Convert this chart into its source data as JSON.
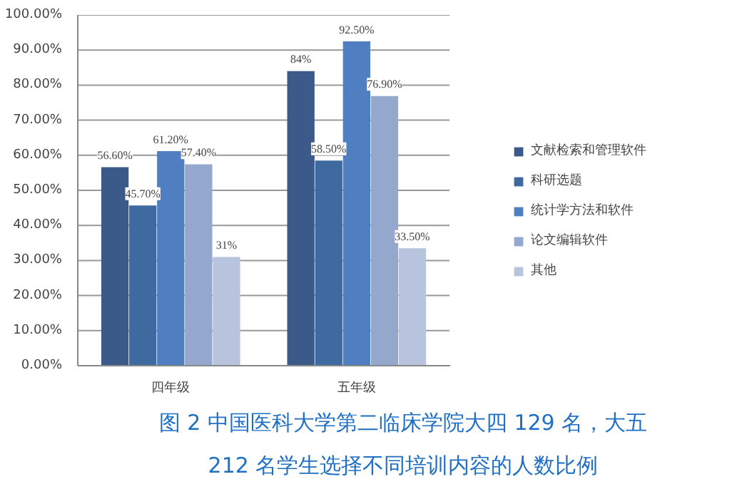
{
  "chart_data": {
    "type": "bar",
    "title": "图 2 中国医科大学第二临床学院大四 129 名，大五 212 名学生选择不同培训内容的人数比例",
    "categories": [
      "四年级",
      "五年级"
    ],
    "series": [
      {
        "name": "文献检索和管理软件",
        "color": "#3b5a8a",
        "values": [
          56.6,
          84
        ],
        "value_labels": [
          "56.60%",
          "84%"
        ]
      },
      {
        "name": "科研选题",
        "color": "#3f6aa0",
        "values": [
          45.7,
          58.5
        ],
        "value_labels": [
          "45.70%",
          "58.50%"
        ]
      },
      {
        "name": "统计学方法和软件",
        "color": "#4f7fc0",
        "values": [
          61.2,
          92.5
        ],
        "value_labels": [
          "61.20%",
          "92.50%"
        ]
      },
      {
        "name": "论文编辑软件",
        "color": "#93a8cc",
        "values": [
          57.4,
          76.9
        ],
        "value_labels": [
          "57.40%",
          "76.90%"
        ]
      },
      {
        "name": "其他",
        "color": "#b8c3de",
        "values": [
          31,
          33.5
        ],
        "value_labels": [
          "31%",
          "33.50%"
        ]
      }
    ],
    "ylim": [
      0,
      100
    ],
    "yticks": [
      {
        "value": 0,
        "label": "0.00%"
      },
      {
        "value": 10,
        "label": "10.00%"
      },
      {
        "value": 20,
        "label": "20.00%"
      },
      {
        "value": 30,
        "label": "30.00%"
      },
      {
        "value": 40,
        "label": "40.00%"
      },
      {
        "value": 50,
        "label": "50.00%"
      },
      {
        "value": 60,
        "label": "60.00%"
      },
      {
        "value": 70,
        "label": "70.00%"
      },
      {
        "value": 80,
        "label": "80.00%"
      },
      {
        "value": 90,
        "label": "90.00%"
      },
      {
        "value": 100,
        "label": "100.00%"
      }
    ],
    "grid": "y",
    "legend": "right"
  }
}
